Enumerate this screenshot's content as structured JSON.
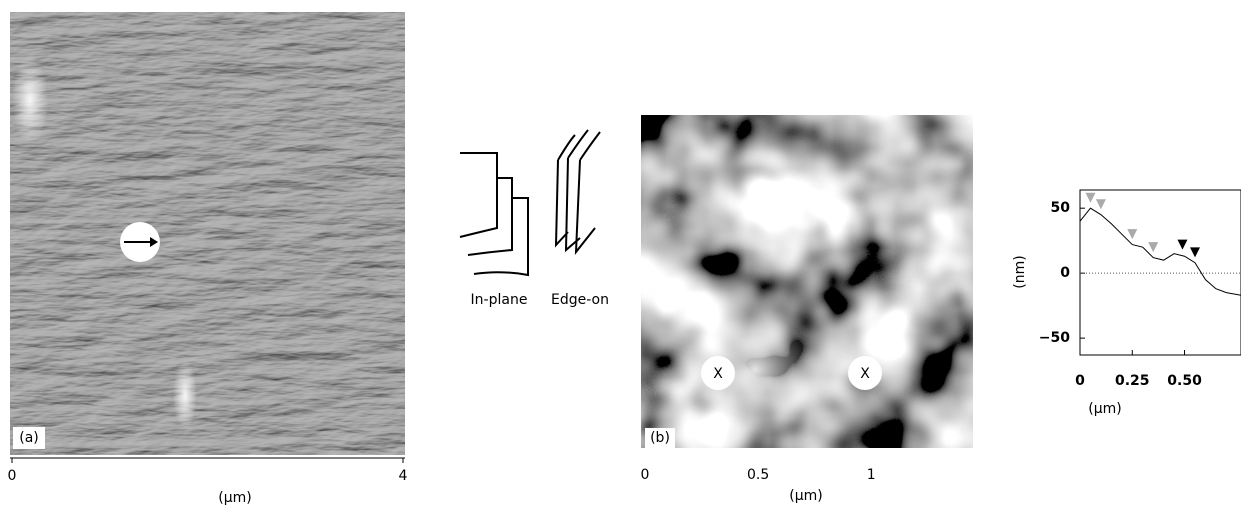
{
  "panel_a": {
    "label": "(a)",
    "xlim": [
      0,
      4
    ],
    "xticks": [
      0,
      4
    ],
    "xlabel": "(µm)"
  },
  "schematic": {
    "in_plane": "In-plane",
    "edge_on": "Edge-on"
  },
  "panel_b": {
    "label": "(b)",
    "marker_1": "X",
    "marker_2": "X",
    "xlim": [
      0,
      1.45
    ],
    "xticks": [
      0,
      0.5,
      1
    ],
    "xlabel": "(µm)"
  },
  "chart_data": {
    "type": "line",
    "xlabel": "(µm)",
    "ylabel": "(nm)",
    "x": [
      0,
      0.05,
      0.1,
      0.15,
      0.2,
      0.25,
      0.3,
      0.35,
      0.4,
      0.45,
      0.5,
      0.55,
      0.6,
      0.65,
      0.7,
      0.77
    ],
    "series": [
      {
        "color": "#000000",
        "values": [
          40,
          50,
          45,
          38,
          30,
          22,
          20,
          12,
          10,
          15,
          13,
          8,
          -5,
          -12,
          -15,
          -17
        ]
      }
    ],
    "markers": [
      {
        "x": 0.05,
        "y": 58,
        "color": "#aaaaaa"
      },
      {
        "x": 0.1,
        "y": 53,
        "color": "#aaaaaa"
      },
      {
        "x": 0.25,
        "y": 30,
        "color": "#aaaaaa"
      },
      {
        "x": 0.35,
        "y": 20,
        "color": "#aaaaaa"
      },
      {
        "x": 0.49,
        "y": 22,
        "color": "#000000"
      },
      {
        "x": 0.55,
        "y": 16,
        "color": "#000000"
      }
    ],
    "xlim": [
      0,
      0.77
    ],
    "ylim": [
      -63,
      64
    ],
    "xticks": [
      0,
      0.25,
      {
        "value": 0.5,
        "label": "0.50"
      }
    ],
    "yticks": [
      50,
      0,
      {
        "value": -50,
        "label": "−50"
      }
    ],
    "zero_line": true
  }
}
